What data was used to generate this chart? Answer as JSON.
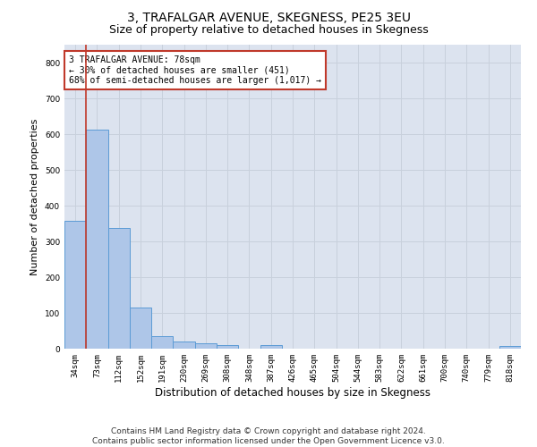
{
  "title": "3, TRAFALGAR AVENUE, SKEGNESS, PE25 3EU",
  "subtitle": "Size of property relative to detached houses in Skegness",
  "xlabel": "Distribution of detached houses by size in Skegness",
  "ylabel": "Number of detached properties",
  "categories": [
    "34sqm",
    "73sqm",
    "112sqm",
    "152sqm",
    "191sqm",
    "230sqm",
    "269sqm",
    "308sqm",
    "348sqm",
    "387sqm",
    "426sqm",
    "465sqm",
    "504sqm",
    "544sqm",
    "583sqm",
    "622sqm",
    "661sqm",
    "700sqm",
    "740sqm",
    "779sqm",
    "818sqm"
  ],
  "values": [
    358,
    612,
    337,
    115,
    36,
    21,
    16,
    11,
    0,
    9,
    0,
    0,
    0,
    0,
    0,
    0,
    0,
    0,
    0,
    0,
    8
  ],
  "bar_color": "#aec6e8",
  "bar_edge_color": "#5b9bd5",
  "vline_color": "#c0392b",
  "annotation_text": "3 TRAFALGAR AVENUE: 78sqm\n← 30% of detached houses are smaller (451)\n68% of semi-detached houses are larger (1,017) →",
  "annotation_box_color": "#ffffff",
  "annotation_box_edge": "#c0392b",
  "ylim": [
    0,
    850
  ],
  "yticks": [
    0,
    100,
    200,
    300,
    400,
    500,
    600,
    700,
    800
  ],
  "grid_color": "#c8d0dc",
  "bg_color": "#dce3ef",
  "footer": "Contains HM Land Registry data © Crown copyright and database right 2024.\nContains public sector information licensed under the Open Government Licence v3.0.",
  "title_fontsize": 10,
  "subtitle_fontsize": 9,
  "xlabel_fontsize": 8.5,
  "ylabel_fontsize": 8,
  "footer_fontsize": 6.5,
  "tick_fontsize": 6.5
}
